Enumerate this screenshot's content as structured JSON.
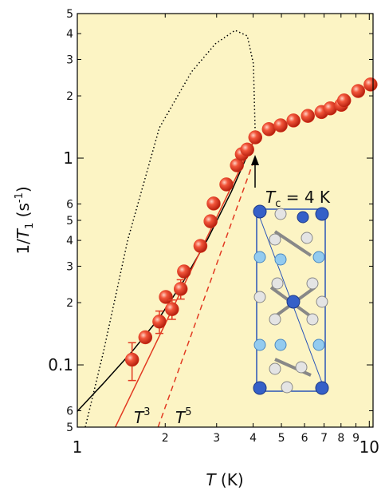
{
  "chart_data": {
    "type": "scatter",
    "x_label": {
      "parts": [
        "T",
        " (K)"
      ]
    },
    "y_label": {
      "parts": [
        "1/",
        "T",
        "1",
        " (s",
        "-1",
        ")"
      ]
    },
    "x": [
      1.54,
      1.71,
      1.91,
      2.01,
      2.11,
      2.26,
      2.32,
      2.64,
      2.86,
      2.93,
      3.24,
      3.52,
      3.66,
      3.82,
      4.07,
      4.53,
      4.97,
      5.5,
      6.16,
      6.86,
      7.35,
      8.02,
      8.2,
      9.16,
      10.1
    ],
    "values": [
      0.106,
      0.136,
      0.162,
      0.213,
      0.186,
      0.233,
      0.283,
      0.376,
      0.495,
      0.603,
      0.746,
      0.923,
      1.045,
      1.1,
      1.26,
      1.38,
      1.44,
      1.52,
      1.6,
      1.67,
      1.74,
      1.81,
      1.9,
      2.11,
      2.27
    ],
    "errors": [
      0.022,
      null,
      0.02,
      null,
      0.02,
      0.025,
      null,
      null,
      null,
      null,
      null,
      null,
      null,
      null,
      null,
      null,
      null,
      null,
      null,
      null,
      null,
      null,
      null,
      null,
      null
    ],
    "color": "#e23a22",
    "curves": [
      {
        "x": [
          1,
          1.23,
          1.54,
          1.91,
          2.31,
          2.79,
          3.37,
          3.82,
          4.07
        ],
        "values": [
          0.0597,
          0.0815,
          0.116,
          0.169,
          0.254,
          0.404,
          0.689,
          1.03,
          1.26
        ],
        "color": "#000000",
        "style": "solid"
      },
      {
        "x": [
          1.065,
          1.23,
          1.49,
          1.91,
          2.46,
          2.97,
          3.47,
          3.82,
          4.01,
          4.07
        ],
        "values": [
          0.05,
          0.116,
          0.404,
          1.4,
          2.61,
          3.57,
          4.15,
          3.9,
          2.86,
          1.26
        ],
        "color": "#000000",
        "style": "dotted"
      },
      {
        "x": [
          1.35,
          4.07
        ],
        "values": [
          0.05,
          1.26
        ],
        "color": "#e23a22",
        "style": "solid"
      },
      {
        "x": [
          1.89,
          3.99
        ],
        "values": [
          0.05,
          0.94
        ],
        "color": "#e23a22",
        "style": "dashed"
      }
    ],
    "annotations": [
      {
        "base": "T",
        "sup": "3"
      },
      {
        "base": "T",
        "sup": "5"
      },
      {
        "base": "T",
        "sub": "c",
        "rest": " = 4 K"
      }
    ],
    "log_x": true,
    "log_y": true,
    "xlim": [
      1,
      10.3
    ],
    "ylim": [
      0.05,
      5
    ],
    "xticks": [
      1,
      {
        "value": 2,
        "label": "2"
      },
      3,
      4,
      5,
      6,
      7,
      8,
      9,
      10
    ],
    "yticks": [
      {
        "value": 0.05,
        "label": "5"
      },
      {
        "value": 0.06,
        "label": "6"
      },
      0.1,
      {
        "value": 0.2,
        "label": "2"
      },
      {
        "value": 0.3,
        "label": "3"
      },
      {
        "value": 0.4,
        "label": "4"
      },
      {
        "value": 0.5,
        "label": "5"
      },
      {
        "value": 0.6,
        "label": "6"
      },
      1,
      2,
      3,
      4,
      5
    ],
    "background": "#fcf4c4"
  }
}
